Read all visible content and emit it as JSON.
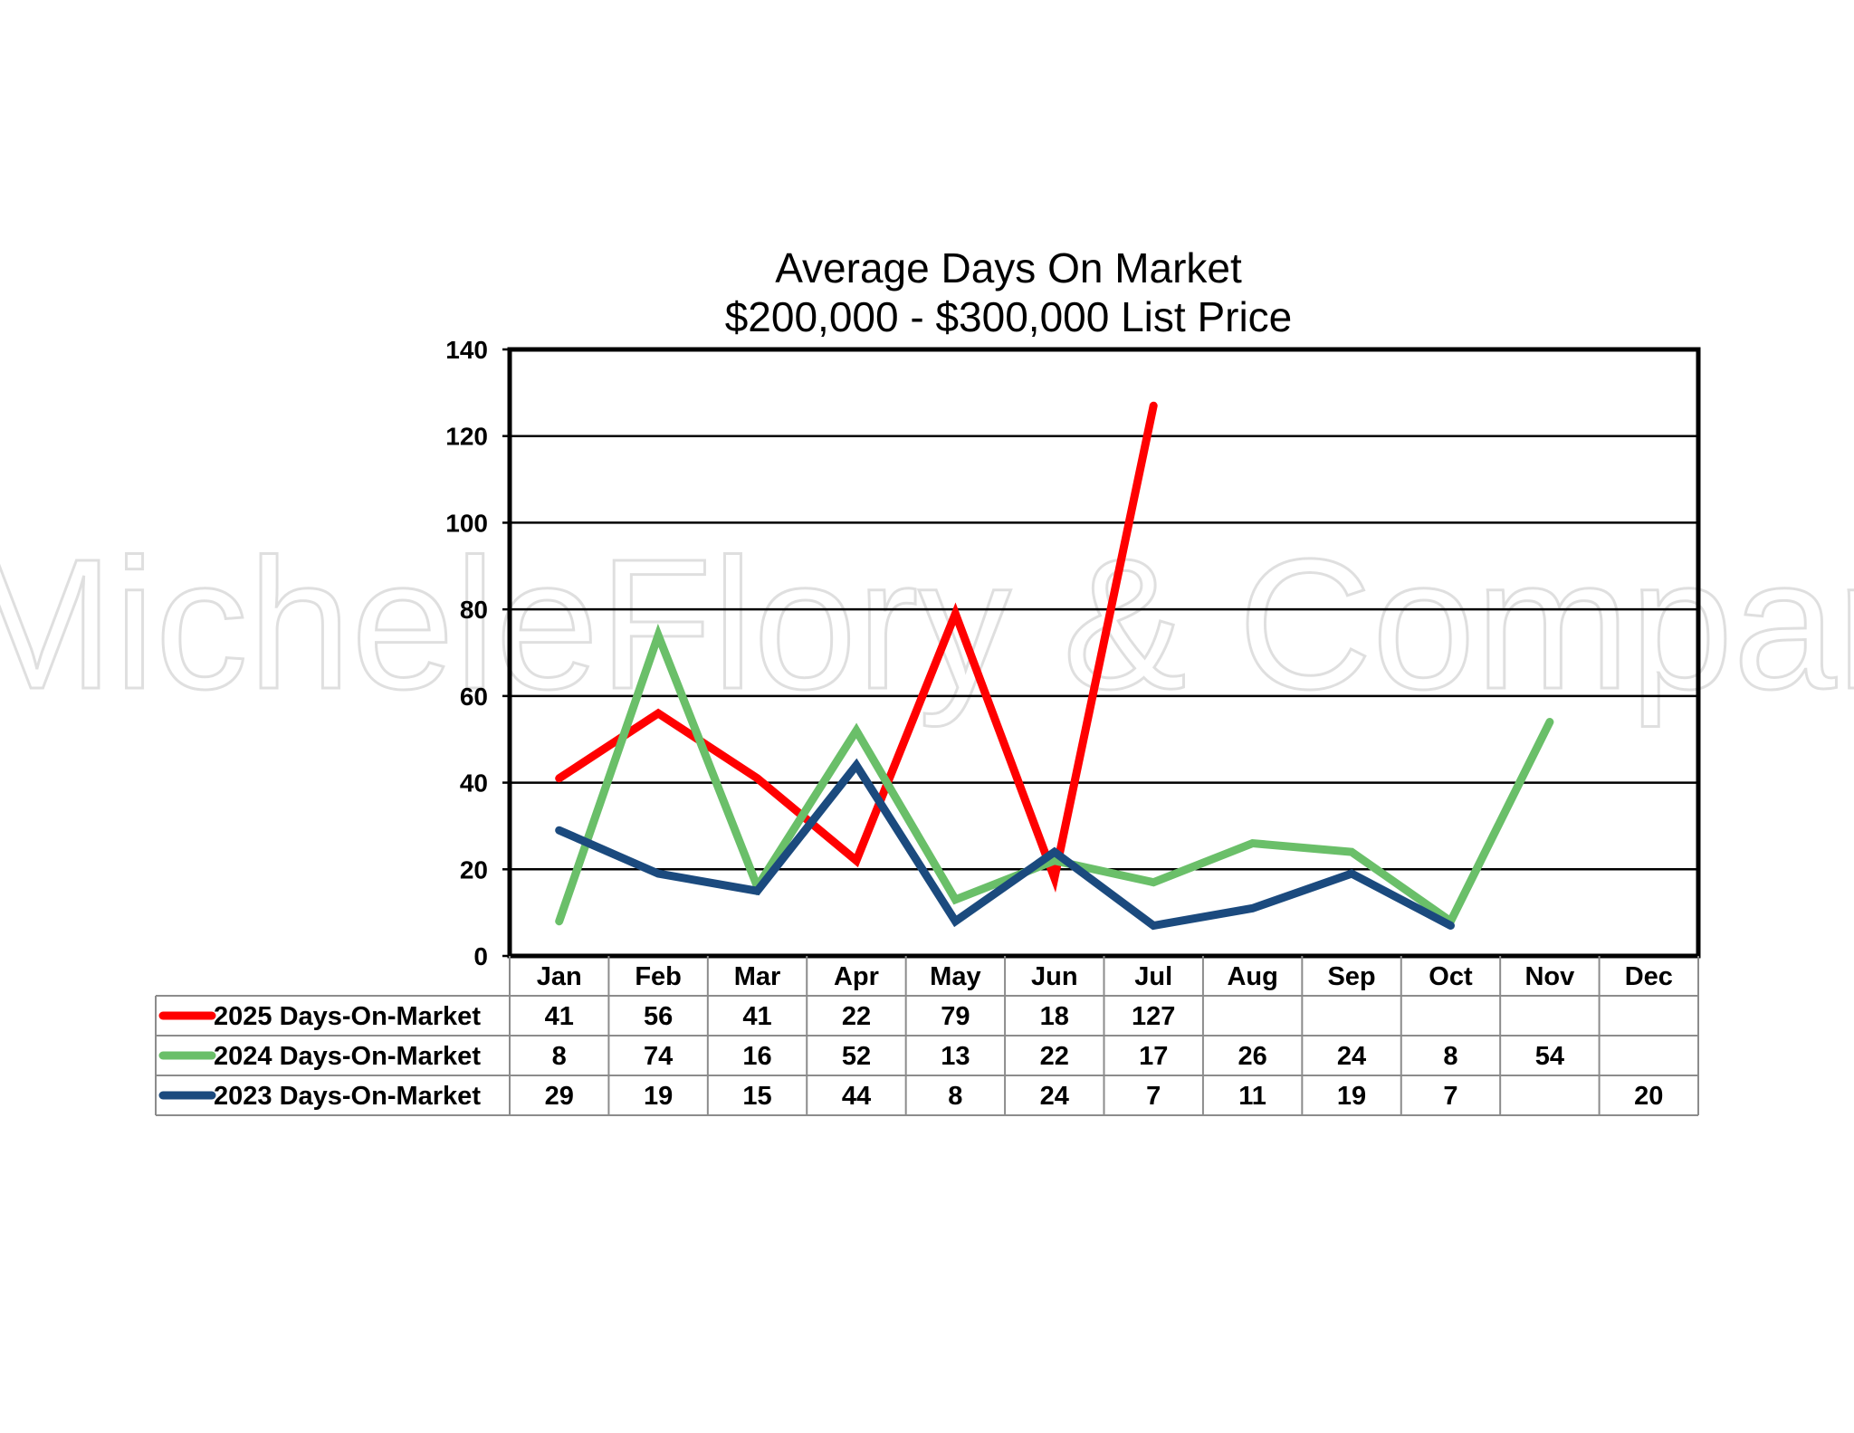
{
  "chart_data": {
    "type": "line",
    "title": "Average Days On Market",
    "subtitle": "$200,000 - $300,000 List Price",
    "categories": [
      "Jan",
      "Feb",
      "Mar",
      "Apr",
      "May",
      "Jun",
      "Jul",
      "Aug",
      "Sep",
      "Oct",
      "Nov",
      "Dec"
    ],
    "ylim": [
      0,
      140
    ],
    "yticks": [
      0,
      20,
      40,
      60,
      80,
      100,
      120,
      140
    ],
    "grid": true,
    "legend": "data table below chart",
    "watermark": "MicheleFlory & Company",
    "series": [
      {
        "name": "2025 Days-On-Market",
        "color": "#ff0000",
        "values": [
          41,
          56,
          41,
          22,
          79,
          18,
          127,
          null,
          null,
          null,
          null,
          null
        ]
      },
      {
        "name": "2024 Days-On-Market",
        "color": "#6abf69",
        "values": [
          8,
          74,
          16,
          52,
          13,
          22,
          17,
          26,
          24,
          8,
          54,
          null
        ]
      },
      {
        "name": "2023 Days-On-Market",
        "color": "#1b4a7e",
        "values": [
          29,
          19,
          15,
          44,
          8,
          24,
          7,
          11,
          19,
          7,
          null,
          20
        ]
      }
    ]
  }
}
